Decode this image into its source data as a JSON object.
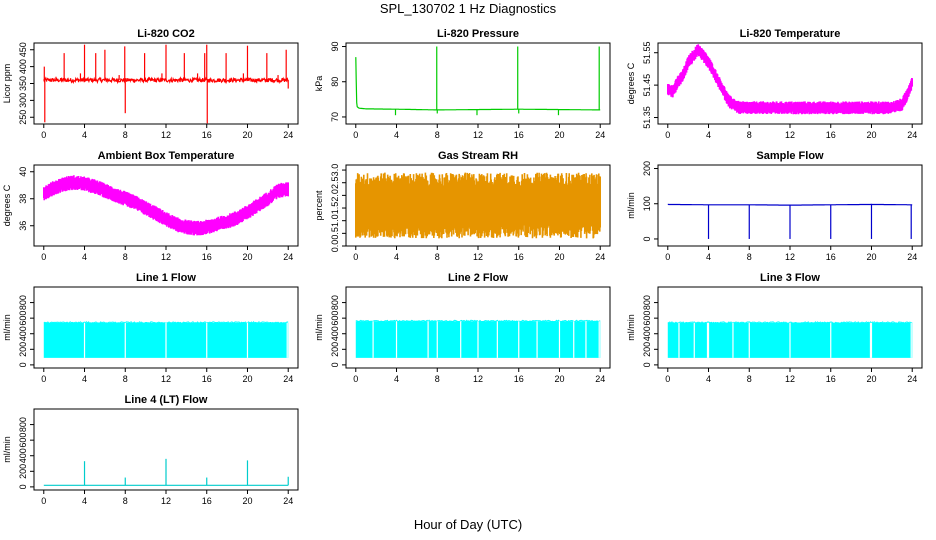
{
  "figure": {
    "title": "SPL_130702  1 Hz Diagnostics",
    "xlabel": "Hour of Day (UTC)"
  },
  "chart_data": [
    {
      "type": "line",
      "title": "Li-820 CO2",
      "ylabel": "Licor ppm",
      "color": "#ff0000",
      "xlim": [
        0,
        24
      ],
      "ylim": [
        230,
        470
      ],
      "xticks": [
        "0",
        "4",
        "8",
        "12",
        "16",
        "20",
        "24"
      ],
      "yticks": [
        "250",
        "300",
        "350",
        "400",
        "450"
      ],
      "baseline": 360,
      "noise": 6,
      "spikes": [
        {
          "x": 0.05,
          "y": 400
        },
        {
          "x": 0.1,
          "y": 235
        },
        {
          "x": 1.2,
          "y": 370
        },
        {
          "x": 2.0,
          "y": 440
        },
        {
          "x": 3.6,
          "y": 380
        },
        {
          "x": 4.0,
          "y": 465
        },
        {
          "x": 5.1,
          "y": 440
        },
        {
          "x": 6.0,
          "y": 450
        },
        {
          "x": 7.4,
          "y": 375
        },
        {
          "x": 7.95,
          "y": 460
        },
        {
          "x": 8.0,
          "y": 262
        },
        {
          "x": 9.9,
          "y": 440
        },
        {
          "x": 11.6,
          "y": 380
        },
        {
          "x": 12.0,
          "y": 465
        },
        {
          "x": 13.8,
          "y": 440
        },
        {
          "x": 15.1,
          "y": 380
        },
        {
          "x": 15.8,
          "y": 440
        },
        {
          "x": 16.0,
          "y": 465
        },
        {
          "x": 16.05,
          "y": 232
        },
        {
          "x": 17.9,
          "y": 440
        },
        {
          "x": 19.6,
          "y": 380
        },
        {
          "x": 20.0,
          "y": 462
        },
        {
          "x": 21.9,
          "y": 440
        },
        {
          "x": 23.0,
          "y": 375
        },
        {
          "x": 23.8,
          "y": 450
        },
        {
          "x": 24.0,
          "y": 335
        }
      ]
    },
    {
      "type": "line",
      "title": "Li-820 Pressure",
      "ylabel": "kPa",
      "color": "#00cc00",
      "xlim": [
        0,
        24
      ],
      "ylim": [
        68,
        91
      ],
      "xticks": [
        "0",
        "4",
        "8",
        "12",
        "16",
        "20",
        "24"
      ],
      "yticks": [
        "70",
        "80",
        "90"
      ],
      "series": [
        {
          "x": [
            0,
            0.05,
            0.1,
            0.3,
            1,
            4,
            8,
            12,
            16,
            20,
            23.9,
            24
          ],
          "y": [
            87,
            80,
            73,
            72.5,
            72.3,
            72.2,
            72.0,
            72.1,
            72.2,
            72.1,
            72.0,
            72.0
          ]
        }
      ],
      "spikes": [
        {
          "x": 7.95,
          "y": 90
        },
        {
          "x": 8.0,
          "y": 71
        },
        {
          "x": 15.9,
          "y": 90
        },
        {
          "x": 16.0,
          "y": 71
        },
        {
          "x": 23.9,
          "y": 90
        },
        {
          "x": 3.9,
          "y": 70.5
        },
        {
          "x": 11.9,
          "y": 70.5
        },
        {
          "x": 19.9,
          "y": 70.5
        }
      ]
    },
    {
      "type": "line",
      "title": "Li-820 Temperature",
      "ylabel": "degrees C",
      "color": "#ff00ff",
      "xlim": [
        0,
        24
      ],
      "ylim": [
        51.33,
        51.58
      ],
      "xticks": [
        "0",
        "4",
        "8",
        "12",
        "16",
        "20",
        "24"
      ],
      "yticks": [
        "51.35",
        "51.45",
        "51.55"
      ],
      "series": [
        {
          "x": [
            0,
            0.5,
            1,
            1.5,
            2,
            2.5,
            3,
            3.5,
            4,
            4.5,
            5,
            5.5,
            6,
            6.5,
            7,
            8,
            10,
            12,
            14,
            16,
            18,
            20,
            22,
            23,
            23.5,
            24
          ],
          "y": [
            51.44,
            51.43,
            51.46,
            51.48,
            51.52,
            51.54,
            51.56,
            51.54,
            51.52,
            51.49,
            51.46,
            51.43,
            51.4,
            51.39,
            51.38,
            51.38,
            51.38,
            51.38,
            51.38,
            51.38,
            51.38,
            51.38,
            51.38,
            51.39,
            51.42,
            51.46
          ]
        }
      ],
      "band": 0.02
    },
    {
      "type": "line",
      "title": "Ambient Box Temperature",
      "ylabel": "degrees C",
      "color": "#ff00ff",
      "xlim": [
        0,
        24
      ],
      "ylim": [
        34.5,
        40.5
      ],
      "xticks": [
        "0",
        "4",
        "8",
        "12",
        "16",
        "20",
        "24"
      ],
      "yticks": [
        "36",
        "38",
        "40"
      ],
      "series": [
        {
          "x": [
            0,
            1,
            2,
            3,
            4,
            5,
            6,
            7,
            8,
            9,
            10,
            11,
            12,
            13,
            14,
            15,
            16,
            17,
            18,
            19,
            20,
            21,
            22,
            23,
            24
          ],
          "y": [
            38.4,
            38.8,
            39.1,
            39.2,
            39.1,
            38.9,
            38.6,
            38.3,
            38.0,
            37.7,
            37.3,
            36.9,
            36.5,
            36.1,
            35.9,
            35.8,
            35.9,
            36.1,
            36.3,
            36.6,
            37.0,
            37.5,
            38.0,
            38.6,
            38.7
          ]
        }
      ],
      "band": 0.55
    },
    {
      "type": "line",
      "title": "Gas Stream RH",
      "ylabel": "percent",
      "color": "#e69500",
      "xlim": [
        0,
        24
      ],
      "ylim": [
        0,
        3.2
      ],
      "xticks": [
        "0",
        "4",
        "8",
        "12",
        "16",
        "20",
        "24"
      ],
      "yticks": [
        "0.0",
        "0.5",
        "1.0",
        "1.5",
        "2.0",
        "2.5",
        "3.0"
      ],
      "series": [
        {
          "x": [
            0,
            24
          ],
          "y": [
            1.6,
            1.6
          ]
        }
      ],
      "band": 1.3
    },
    {
      "type": "line",
      "title": "Sample Flow",
      "ylabel": "ml/min",
      "color": "#0000cc",
      "xlim": [
        0,
        24
      ],
      "ylim": [
        -20,
        210
      ],
      "xticks": [
        "0",
        "4",
        "8",
        "12",
        "16",
        "20",
        "24"
      ],
      "yticks": [
        "0",
        "100",
        "200"
      ],
      "series": [
        {
          "x": [
            0,
            4,
            8,
            12,
            16,
            20,
            24
          ],
          "y": [
            98,
            97,
            97,
            96,
            97,
            98,
            97
          ]
        }
      ],
      "spikes": [
        {
          "x": 4.0,
          "y": 0
        },
        {
          "x": 8.0,
          "y": 0
        },
        {
          "x": 12.0,
          "y": 0
        },
        {
          "x": 16.0,
          "y": 0
        },
        {
          "x": 20.0,
          "y": 0
        },
        {
          "x": 23.9,
          "y": 0
        }
      ]
    },
    {
      "type": "area",
      "title": "Line 1 Flow",
      "ylabel": "ml/min",
      "color": "#00ffff",
      "xlim": [
        0,
        24
      ],
      "ylim": [
        -40,
        1000
      ],
      "xticks": [
        "0",
        "4",
        "8",
        "12",
        "16",
        "20",
        "24"
      ],
      "yticks": [
        "0",
        "200",
        "400",
        "600",
        "800"
      ],
      "band_low": 90,
      "band_high": 540,
      "gaps": [
        4.0,
        8.0,
        12.0,
        16.0,
        20.0,
        23.9
      ]
    },
    {
      "type": "area",
      "title": "Line 2 Flow",
      "ylabel": "ml/min",
      "color": "#00ffff",
      "xlim": [
        0,
        24
      ],
      "ylim": [
        -40,
        1000
      ],
      "xticks": [
        "0",
        "4",
        "8",
        "12",
        "16",
        "20",
        "24"
      ],
      "yticks": [
        "0",
        "200",
        "400",
        "600",
        "800"
      ],
      "band_low": 90,
      "band_high": 560,
      "gaps": [
        1.7,
        4.0,
        7.1,
        8.0,
        10.3,
        12.0,
        13.9,
        16.0,
        17.8,
        20.0,
        21.4,
        22.6,
        23.9
      ]
    },
    {
      "type": "area",
      "title": "Line 3 Flow",
      "ylabel": "ml/min",
      "color": "#00ffff",
      "xlim": [
        0,
        24
      ],
      "ylim": [
        -40,
        1000
      ],
      "xticks": [
        "0",
        "4",
        "8",
        "12",
        "16",
        "20",
        "24"
      ],
      "yticks": [
        "0",
        "200",
        "400",
        "600",
        "800"
      ],
      "band_low": 90,
      "band_high": 540,
      "gaps": [
        1.1,
        2.6,
        3.9,
        4.0,
        6.4,
        8.0,
        12.0,
        16.0,
        19.9,
        20.0,
        23.9
      ]
    },
    {
      "type": "line",
      "title": "Line 4 (LT) Flow",
      "ylabel": "ml/min",
      "color": "#00cccc",
      "xlim": [
        0,
        24
      ],
      "ylim": [
        -40,
        1000
      ],
      "xticks": [
        "0",
        "4",
        "8",
        "12",
        "16",
        "20",
        "24"
      ],
      "yticks": [
        "0",
        "200",
        "400",
        "600",
        "800"
      ],
      "series": [
        {
          "x": [
            0,
            24
          ],
          "y": [
            20,
            20
          ]
        }
      ],
      "spikes": [
        {
          "x": 4.0,
          "y": 330
        },
        {
          "x": 8.0,
          "y": 120
        },
        {
          "x": 12.0,
          "y": 360
        },
        {
          "x": 16.0,
          "y": 120
        },
        {
          "x": 20.0,
          "y": 340
        },
        {
          "x": 24.0,
          "y": 130
        }
      ]
    }
  ]
}
